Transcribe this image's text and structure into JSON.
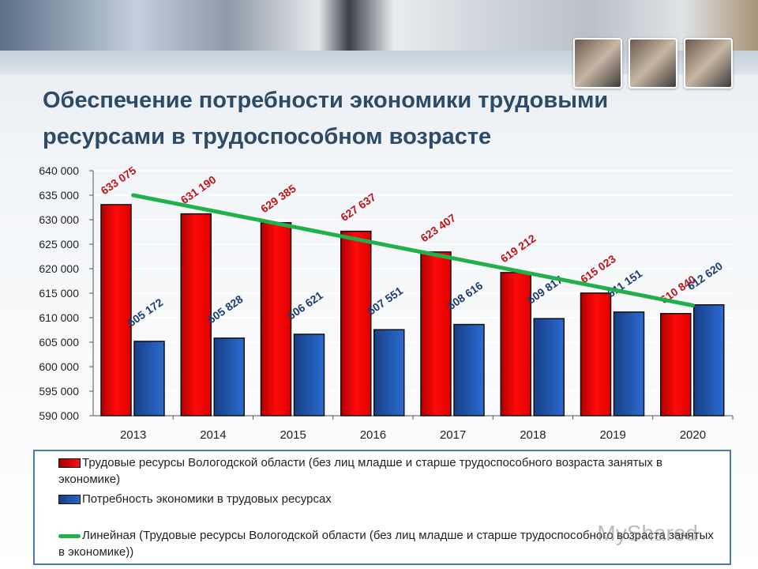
{
  "slide": {
    "title": "Обеспечение потребности экономики трудовыми ресурсами в трудоспособном возрасте",
    "watermark": "MyShared"
  },
  "colors": {
    "series1": "#e00000",
    "series2": "#1e5cb8",
    "trend": "#22b04c",
    "label1": "#c0141c",
    "label2": "#1c3f70",
    "title": "#2d4a66"
  },
  "chart_data": {
    "type": "bar",
    "title": "Обеспечение потребности экономики трудовыми ресурсами в трудоспособном возрасте",
    "xlabel": "",
    "ylabel": "",
    "ylim": [
      590000,
      640000
    ],
    "yticks": [
      "590 000",
      "595 000",
      "600 000",
      "605 000",
      "610 000",
      "615 000",
      "620 000",
      "625 000",
      "630 000",
      "635 000",
      "640 000"
    ],
    "categories": [
      "2013",
      "2014",
      "2015",
      "2016",
      "2017",
      "2018",
      "2019",
      "2020"
    ],
    "series": [
      {
        "name": "Трудовые ресурсы Вологодской области (без лиц младше и старше трудоспособного возраста занятых в экономике)",
        "values": [
          633075,
          631190,
          629385,
          627637,
          623407,
          619212,
          615023,
          610840
        ],
        "labels": [
          "633 075",
          "631 190",
          "629 385",
          "627 637",
          "623 407",
          "619 212",
          "615 023",
          "610 840"
        ]
      },
      {
        "name": "Потребность экономики в трудовых ресурсах",
        "values": [
          605172,
          605828,
          606621,
          607551,
          608616,
          609817,
          611151,
          612620
        ],
        "labels": [
          "605 172",
          "605 828",
          "606 621",
          "607 551",
          "608 616",
          "609 817",
          "611 151",
          "612 620"
        ]
      }
    ],
    "trendline": {
      "name": "Линейная (Трудовые ресурсы Вологодской области (без лиц младше и старше трудоспособного возраста занятых в экономике))",
      "type": "linear",
      "start": 635000,
      "end": 612500
    },
    "grid": true,
    "legend_position": "bottom"
  },
  "legend": {
    "items": [
      {
        "label": "Трудовые ресурсы Вологодской области (без лиц младше и старше трудоспособного возраста занятых в экономике)"
      },
      {
        "label": "Потребность экономики в трудовых ресурсах"
      },
      {
        "label": "Линейная (Трудовые ресурсы Вологодской области (без лиц младше и старше трудоспособного возраста занятых в экономике))"
      }
    ]
  }
}
